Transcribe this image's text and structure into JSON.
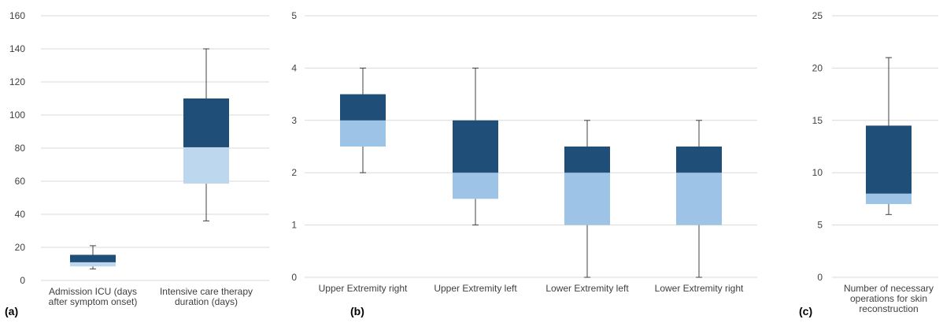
{
  "colors": {
    "upper_box": "#1f4e79",
    "grid": "#d9d9d9",
    "whisker": "#404040",
    "axis_text": "#404040"
  },
  "chart_data": [
    {
      "type": "box",
      "panel_label": "(a)",
      "ylim": [
        0,
        160
      ],
      "yticks": [
        "0",
        "20",
        "40",
        "60",
        "80",
        "100",
        "120",
        "140",
        "160"
      ],
      "grid": true,
      "lower_box_color": "#bdd7ee",
      "categories": [
        {
          "label_lines": [
            "Admission ICU (days",
            "after symptom onset)"
          ],
          "min": 7,
          "q1": 8.5,
          "median": 11,
          "q3": 15.5,
          "max": 21
        },
        {
          "label_lines": [
            "Intensive care therapy",
            "duration (days)"
          ],
          "min": 36,
          "q1": 58.5,
          "median": 80.5,
          "q3": 110,
          "max": 140
        }
      ]
    },
    {
      "type": "box",
      "panel_label": "(b)",
      "ylim": [
        0,
        5
      ],
      "yticks": [
        "0",
        "1",
        "2",
        "3",
        "4",
        "5"
      ],
      "grid": true,
      "lower_box_color": "#9dc3e6",
      "categories": [
        {
          "label_lines": [
            "Upper  Extremity right"
          ],
          "min": 2,
          "q1": 2.5,
          "median": 3,
          "q3": 3.5,
          "max": 4
        },
        {
          "label_lines": [
            "Upper  Extremity left"
          ],
          "min": 1,
          "q1": 1.5,
          "median": 2,
          "q3": 3,
          "max": 4
        },
        {
          "label_lines": [
            "Lower  Extremity left"
          ],
          "min": 0,
          "q1": 1,
          "median": 2,
          "q3": 2.5,
          "max": 3
        },
        {
          "label_lines": [
            "Lower  Extremity right"
          ],
          "min": 0,
          "q1": 1,
          "median": 2,
          "q3": 2.5,
          "max": 3
        }
      ]
    },
    {
      "type": "box",
      "panel_label": "(c)",
      "ylim": [
        0,
        25
      ],
      "yticks": [
        "0",
        "5",
        "10",
        "15",
        "20",
        "25"
      ],
      "grid": true,
      "lower_box_color": "#9dc3e6",
      "categories": [
        {
          "label_lines": [
            "Number of necessary",
            "operations for skin",
            "reconstruction"
          ],
          "min": 6,
          "q1": 7,
          "median": 8,
          "q3": 14.5,
          "max": 21
        }
      ]
    }
  ]
}
